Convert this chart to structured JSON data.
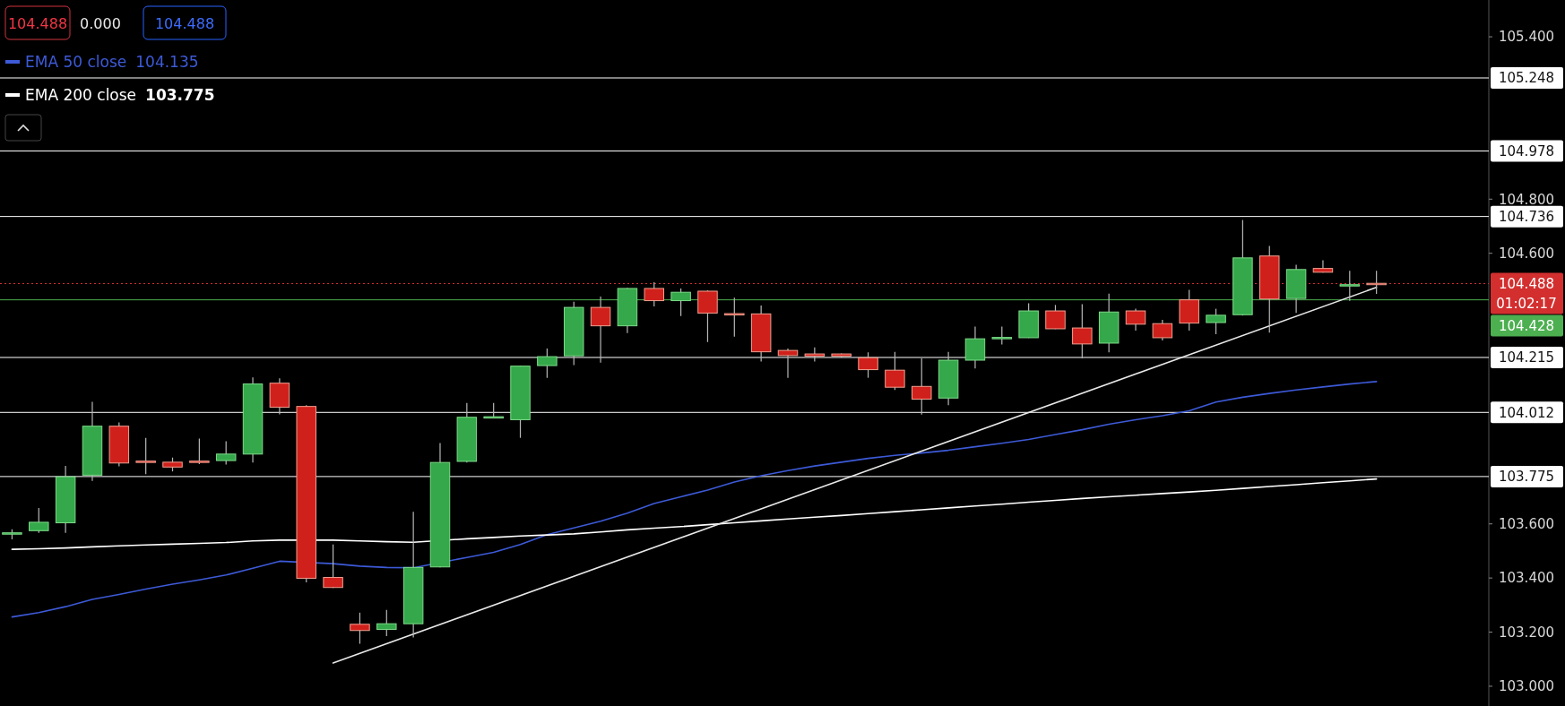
{
  "chart_data": {
    "type": "candlestick",
    "categories": [
      null,
      null,
      null,
      null,
      null,
      null,
      null,
      null,
      null,
      null,
      null,
      null,
      null,
      null,
      null,
      null,
      null,
      null,
      null,
      null,
      null,
      null,
      null,
      null,
      null,
      null,
      null,
      null,
      null,
      null,
      null,
      null,
      null,
      null,
      null,
      null,
      null,
      null,
      null,
      null,
      null,
      null,
      null,
      null,
      null,
      null,
      null,
      null,
      null,
      null,
      null,
      null
    ],
    "ohlc": [
      [
        103.562,
        103.58,
        103.543,
        103.567
      ],
      [
        103.575,
        103.659,
        103.567,
        103.606
      ],
      [
        103.604,
        103.814,
        103.567,
        103.774
      ],
      [
        103.78,
        104.051,
        103.759,
        103.961
      ],
      [
        103.961,
        103.975,
        103.813,
        103.825
      ],
      [
        103.832,
        103.918,
        103.784,
        103.83
      ],
      [
        103.828,
        103.845,
        103.794,
        103.81
      ],
      [
        103.832,
        103.915,
        103.821,
        103.83
      ],
      [
        103.834,
        103.905,
        103.819,
        103.858
      ],
      [
        103.858,
        104.141,
        103.827,
        104.117
      ],
      [
        104.12,
        104.138,
        104.005,
        104.031
      ],
      [
        104.034,
        104.039,
        103.384,
        103.399
      ],
      [
        103.402,
        103.524,
        103.363,
        103.365
      ],
      [
        103.229,
        103.272,
        103.157,
        103.206
      ],
      [
        103.21,
        103.282,
        103.185,
        103.231
      ],
      [
        103.231,
        103.645,
        103.18,
        103.439
      ],
      [
        103.441,
        103.899,
        103.439,
        103.827
      ],
      [
        103.831,
        104.047,
        103.827,
        103.994
      ],
      [
        103.994,
        104.047,
        103.993,
        103.996
      ],
      [
        103.985,
        104.185,
        103.918,
        104.183
      ],
      [
        104.185,
        104.248,
        104.14,
        104.218
      ],
      [
        104.221,
        104.421,
        104.187,
        104.4
      ],
      [
        104.4,
        104.44,
        104.196,
        104.332
      ],
      [
        104.332,
        104.472,
        104.305,
        104.47
      ],
      [
        104.47,
        104.493,
        104.404,
        104.425
      ],
      [
        104.425,
        104.47,
        104.368,
        104.456
      ],
      [
        104.46,
        104.463,
        104.272,
        104.379
      ],
      [
        104.377,
        104.436,
        104.292,
        104.375
      ],
      [
        104.376,
        104.407,
        104.2,
        104.236
      ],
      [
        104.241,
        104.248,
        104.14,
        104.222
      ],
      [
        104.228,
        104.252,
        104.2,
        104.22
      ],
      [
        104.228,
        104.23,
        104.215,
        104.22
      ],
      [
        104.214,
        104.234,
        104.14,
        104.17
      ],
      [
        104.168,
        104.236,
        104.095,
        104.105
      ],
      [
        104.108,
        104.212,
        104.004,
        104.061
      ],
      [
        104.065,
        104.236,
        104.039,
        104.205
      ],
      [
        104.205,
        104.329,
        104.174,
        104.284
      ],
      [
        104.287,
        104.329,
        104.263,
        104.289
      ],
      [
        104.288,
        104.415,
        104.287,
        104.387
      ],
      [
        104.387,
        104.409,
        104.32,
        104.321
      ],
      [
        104.324,
        104.412,
        104.212,
        104.265
      ],
      [
        104.268,
        104.451,
        104.234,
        104.383
      ],
      [
        104.387,
        104.395,
        104.314,
        104.338
      ],
      [
        104.34,
        104.354,
        104.278,
        104.288
      ],
      [
        104.428,
        104.465,
        104.314,
        104.342
      ],
      [
        104.344,
        104.395,
        104.301,
        104.371
      ],
      [
        104.373,
        104.723,
        104.37,
        104.583
      ],
      [
        104.59,
        104.627,
        104.307,
        104.431
      ],
      [
        104.433,
        104.558,
        104.38,
        104.54
      ],
      [
        104.544,
        104.574,
        104.529,
        104.53
      ],
      [
        104.482,
        104.535,
        104.424,
        104.484
      ],
      [
        104.489,
        104.535,
        104.45,
        104.488
      ]
    ],
    "series": [
      {
        "name": "EMA 50 close",
        "type": "line",
        "color": "#3d5ad8",
        "values": [
          103.256,
          103.272,
          103.294,
          103.321,
          103.339,
          103.359,
          103.377,
          103.393,
          103.411,
          103.436,
          103.462,
          null,
          103.453,
          103.444,
          103.439,
          103.438,
          null,
          103.476,
          103.495,
          103.524,
          103.56,
          103.585,
          103.61,
          103.64,
          103.675,
          103.7,
          103.725,
          103.755,
          103.778,
          103.797,
          103.814,
          103.828,
          103.842,
          103.853,
          103.862,
          103.872,
          103.885,
          103.898,
          103.912,
          103.93,
          103.948,
          103.968,
          103.985,
          104.0,
          104.018,
          104.05,
          104.068,
          104.082,
          104.095,
          104.106,
          104.117,
          104.126
        ]
      },
      {
        "name": "EMA 200 close",
        "type": "line",
        "color": "#ffffff",
        "values": [
          103.506,
          103.508,
          103.511,
          103.515,
          103.519,
          103.522,
          103.525,
          103.528,
          103.531,
          103.537,
          103.54,
          null,
          103.54,
          103.537,
          103.534,
          103.532,
          null,
          103.545,
          103.55,
          103.555,
          103.559,
          103.563,
          103.57,
          103.578,
          103.584,
          103.59,
          103.597,
          103.604,
          103.611,
          103.618,
          103.625,
          103.631,
          103.638,
          103.645,
          103.652,
          103.659,
          103.666,
          103.673,
          103.68,
          103.687,
          103.694,
          103.7,
          103.706,
          103.712,
          103.718,
          103.724,
          103.731,
          103.738,
          103.745,
          103.752,
          103.759,
          103.766
        ]
      },
      {
        "type": "line",
        "color": "#e8e8e8",
        "values": [
          null,
          null,
          null,
          null,
          null,
          null,
          null,
          null,
          null,
          null,
          null,
          null,
          103.086,
          null,
          null,
          null,
          null,
          null,
          null,
          null,
          null,
          null,
          null,
          null,
          null,
          null,
          null,
          null,
          null,
          null,
          null,
          null,
          null,
          null,
          null,
          null,
          null,
          null,
          null,
          null,
          null,
          null,
          null,
          null,
          null,
          null,
          null,
          null,
          null,
          null,
          null,
          104.474
        ]
      }
    ],
    "ylim": [
      102.927,
      105.536
    ],
    "yticks": [
      {
        "value": 103.0,
        "label": "103.000"
      },
      {
        "value": 103.2,
        "label": "103.200"
      },
      {
        "value": 103.4,
        "label": "103.400"
      },
      {
        "value": 103.6,
        "label": "103.600"
      },
      {
        "value": 104.6,
        "label": "104.600"
      },
      {
        "value": 104.8,
        "label": "104.800"
      },
      {
        "value": 105.4,
        "label": "105.400"
      }
    ],
    "ref_lines": [
      {
        "axis": "y",
        "value": 105.248,
        "label": "105.248",
        "color": "#ffffff"
      },
      {
        "axis": "y",
        "value": 104.978,
        "label": "104.978",
        "color": "#ffffff"
      },
      {
        "axis": "y",
        "value": 104.736,
        "label": "104.736",
        "color": "#ffffff"
      },
      {
        "axis": "y",
        "value": 104.488,
        "label": "104.488",
        "color": "#d32f2f",
        "line_style": "dotted"
      },
      {
        "axis": "y",
        "value": 104.428,
        "label": "104.428",
        "color": "#4caf50"
      },
      {
        "axis": "y",
        "value": 104.215,
        "label": "104.215",
        "color": "#ffffff"
      },
      {
        "axis": "y",
        "value": 104.012,
        "label": "104.012",
        "color": "#ffffff"
      },
      {
        "axis": "y",
        "value": 103.775,
        "label": "103.775",
        "color": "#ffffff"
      }
    ],
    "annotations": [
      "104.488",
      "0.000",
      "104.488",
      "104.135",
      "103.775",
      "01:02:17"
    ],
    "legend": "top left",
    "marker": "none"
  }
}
